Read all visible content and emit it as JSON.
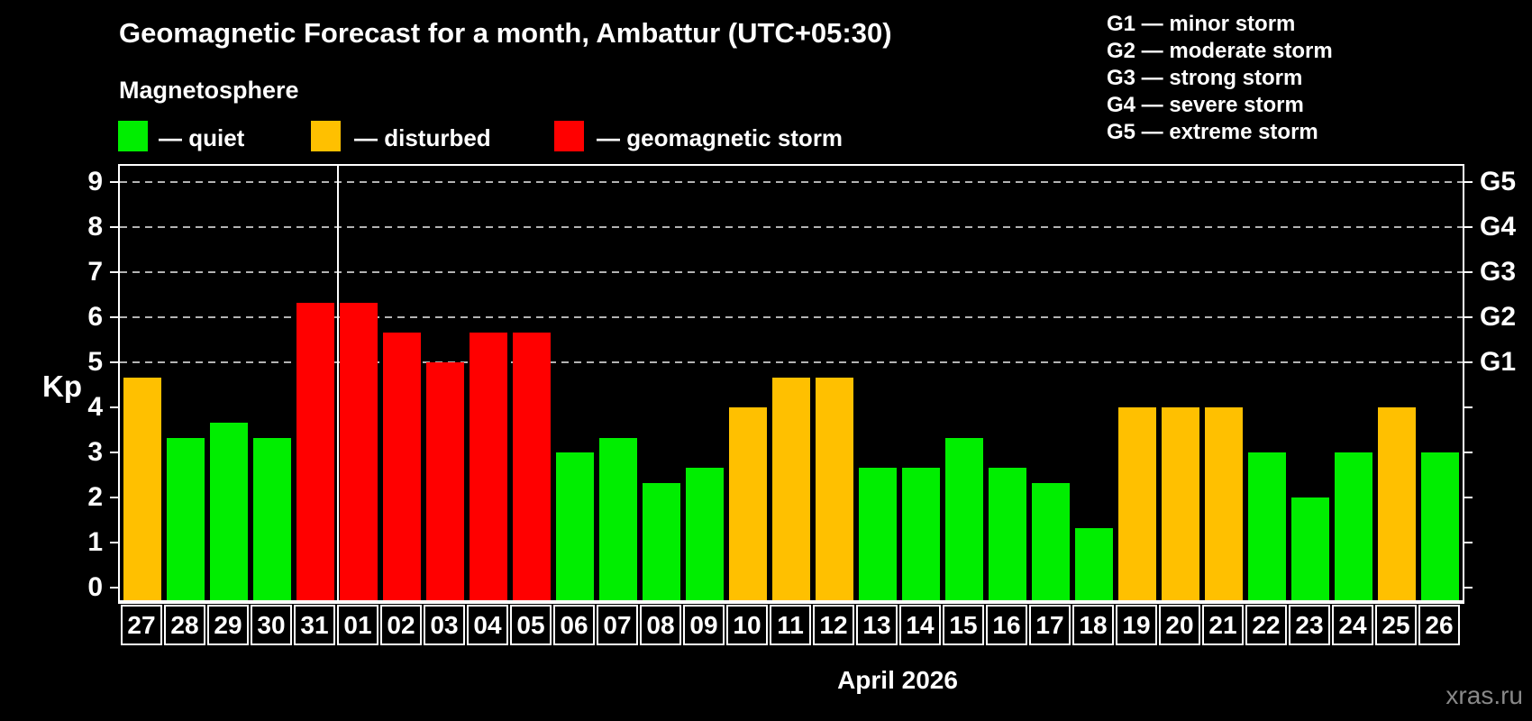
{
  "title": "Geomagnetic Forecast for a month, Ambattur (UTC+05:30)",
  "magnetosphere_label": "Magnetosphere",
  "legend": {
    "items": [
      {
        "label": "— quiet",
        "status": "quiet"
      },
      {
        "label": "— disturbed",
        "status": "disturbed"
      },
      {
        "label": "— geomagnetic storm",
        "status": "storm"
      }
    ]
  },
  "g_scale_legend": {
    "items": [
      "G1 — minor storm",
      "G2 — moderate storm",
      "G3 — strong storm",
      "G4 — severe storm",
      "G5 — extreme storm"
    ]
  },
  "colors": {
    "quiet": "#00EE00",
    "disturbed": "#FFC000",
    "storm": "#FF0000",
    "background": "#000000",
    "axis": "#FFFFFF",
    "grid": "#B3B3B3",
    "watermark": "#888888"
  },
  "axes": {
    "y_label": "Kp",
    "y_ticks": [
      0,
      1,
      2,
      3,
      4,
      5,
      6,
      7,
      8,
      9
    ],
    "right_labels": [
      {
        "value": 5,
        "label": "G1"
      },
      {
        "value": 6,
        "label": "G2"
      },
      {
        "value": 7,
        "label": "G3"
      },
      {
        "value": 8,
        "label": "G4"
      },
      {
        "value": 9,
        "label": "G5"
      }
    ],
    "x_label": "April 2026"
  },
  "watermark": "xras.ru",
  "chart_data": {
    "type": "bar",
    "title": "Geomagnetic Forecast for a month, Ambattur (UTC+05:30)",
    "xlabel": "April 2026",
    "ylabel": "Kp",
    "ylim": [
      0,
      9.6
    ],
    "grid_levels": [
      5,
      6,
      7,
      8,
      9
    ],
    "legend_position": "top-left",
    "categories": [
      "27",
      "28",
      "29",
      "30",
      "31",
      "01",
      "02",
      "03",
      "04",
      "05",
      "06",
      "07",
      "08",
      "09",
      "10",
      "11",
      "12",
      "13",
      "14",
      "15",
      "16",
      "17",
      "18",
      "19",
      "20",
      "21",
      "22",
      "23",
      "24",
      "25",
      "26"
    ],
    "values": [
      4.67,
      3.33,
      3.67,
      3.33,
      6.33,
      6.33,
      5.67,
      5.0,
      5.67,
      5.67,
      3.0,
      3.33,
      2.33,
      2.67,
      4.0,
      4.67,
      4.67,
      2.67,
      2.67,
      3.33,
      2.67,
      2.33,
      1.33,
      4.0,
      4.0,
      4.0,
      3.0,
      2.0,
      3.0,
      4.0,
      3.0
    ],
    "statuses": [
      "disturbed",
      "quiet",
      "quiet",
      "quiet",
      "storm",
      "storm",
      "storm",
      "storm",
      "storm",
      "storm",
      "quiet",
      "quiet",
      "quiet",
      "quiet",
      "disturbed",
      "disturbed",
      "disturbed",
      "quiet",
      "quiet",
      "quiet",
      "quiet",
      "quiet",
      "quiet",
      "disturbed",
      "disturbed",
      "disturbed",
      "quiet",
      "quiet",
      "quiet",
      "disturbed",
      "quiet"
    ],
    "month_boundary_after_index": 4
  }
}
